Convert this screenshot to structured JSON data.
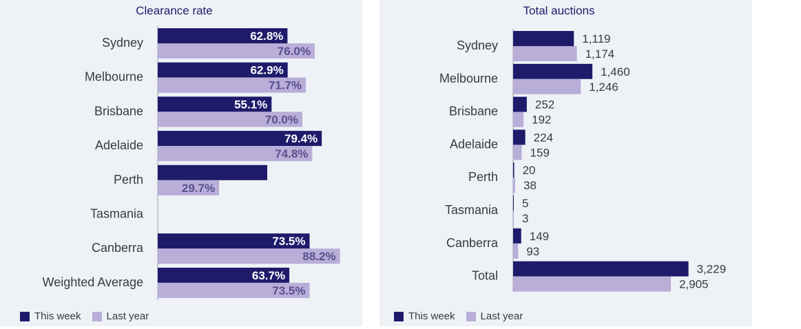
{
  "colors": {
    "this_week": "#1e1b6b",
    "last_year": "#b8aed8",
    "panel_bg": "#eef2f6",
    "text": "#3a3a3a"
  },
  "chart_data": [
    {
      "type": "bar",
      "orientation": "horizontal",
      "title": "Clearance rate",
      "categories": [
        "Sydney",
        "Melbourne",
        "Brisbane",
        "Adelaide",
        "Perth",
        "Tasmania",
        "Canberra",
        "Weighted Average"
      ],
      "series": [
        {
          "name": "This week",
          "values": [
            62.8,
            62.9,
            55.1,
            79.4,
            53.0,
            null,
            73.5,
            63.7
          ],
          "labels": [
            "62.8%",
            "62.9%",
            "55.1%",
            "79.4%",
            "",
            "",
            "73.5%",
            "63.7%"
          ]
        },
        {
          "name": "Last year",
          "values": [
            76.0,
            71.7,
            70.0,
            74.8,
            29.7,
            null,
            88.2,
            73.5
          ],
          "labels": [
            "76.0%",
            "71.7%",
            "70.0%",
            "74.8%",
            "29.7%",
            "",
            "88.2%",
            "73.5%"
          ]
        }
      ],
      "xlim": [
        0,
        100
      ],
      "grid": false,
      "legend": "bottom-left"
    },
    {
      "type": "bar",
      "orientation": "horizontal",
      "title": "Total auctions",
      "categories": [
        "Sydney",
        "Melbourne",
        "Brisbane",
        "Adelaide",
        "Perth",
        "Tasmania",
        "Canberra",
        "Total"
      ],
      "series": [
        {
          "name": "This week",
          "values": [
            1119,
            1460,
            252,
            224,
            20,
            5,
            149,
            3229
          ],
          "labels": [
            "1,119",
            "1,460",
            "252",
            "224",
            "20",
            "5",
            "149",
            "3,229"
          ]
        },
        {
          "name": "Last year",
          "values": [
            1174,
            1246,
            192,
            159,
            38,
            3,
            93,
            2905
          ],
          "labels": [
            "1,174",
            "1,246",
            "192",
            "159",
            "38",
            "3",
            "93",
            "2,905"
          ]
        }
      ],
      "xlim": [
        0,
        3500
      ],
      "grid": false,
      "legend": "bottom-left"
    }
  ],
  "legend": {
    "this_week": "This week",
    "last_year": "Last year"
  }
}
